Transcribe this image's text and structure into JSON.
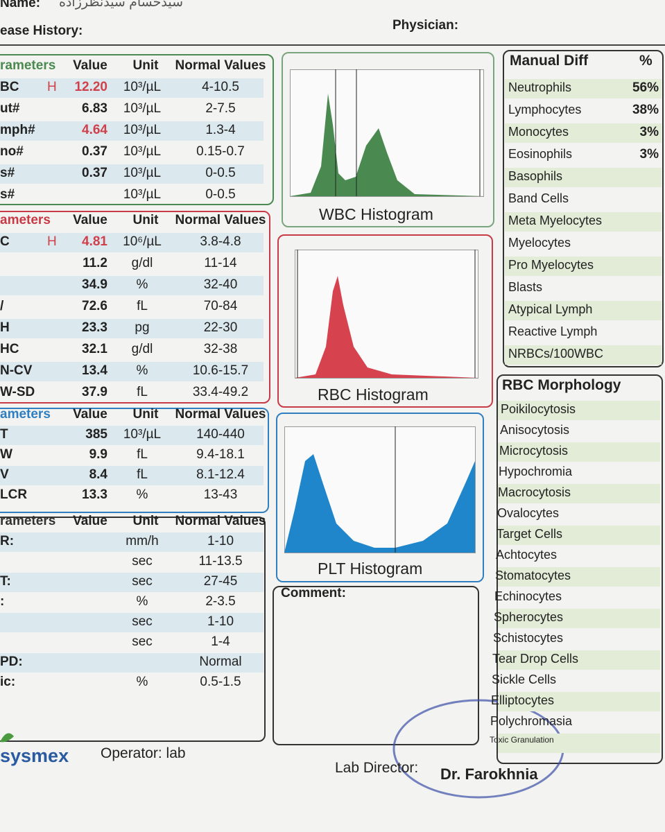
{
  "header": {
    "name_label": "Name:",
    "name_value": "سیدحسام سیدنظرزاده",
    "history_label": "ease History:",
    "physician_label": "Physician:"
  },
  "wbc": {
    "color": "#4a8a50",
    "header": [
      "rameters",
      "Value",
      "Unit",
      "Normal Values"
    ],
    "rows": [
      {
        "name": "BC",
        "flag": "H",
        "value": "12.20",
        "unit": "10³/µL",
        "normal": "4-10.5",
        "color": "#d0404a"
      },
      {
        "name": "ut#",
        "value": "6.83",
        "unit": "10³/µL",
        "normal": "2-7.5"
      },
      {
        "name": "mph#",
        "value": "4.64",
        "unit": "10³/µL",
        "normal": "1.3-4",
        "color": "#d0404a"
      },
      {
        "name": "no#",
        "value": "0.37",
        "unit": "10³/µL",
        "normal": "0.15-0.7"
      },
      {
        "name": "s#",
        "value": "0.37",
        "unit": "10³/µL",
        "normal": "0-0.5"
      },
      {
        "name": "s#",
        "unit": "10³/µL",
        "normal": "0-0.5"
      }
    ]
  },
  "rbc": {
    "color": "#c83a45",
    "header": [
      "ameters",
      "Value",
      "Unit",
      "Normal Values"
    ],
    "rows": [
      {
        "name": "C",
        "flag": "H",
        "value": "4.81",
        "unit": "10⁶/µL",
        "normal": "3.8-4.8",
        "color": "#d0404a"
      },
      {
        "value": "11.2",
        "unit": "g/dl",
        "normal": "11-14"
      },
      {
        "value": "34.9",
        "unit": "%",
        "normal": "32-40"
      },
      {
        "name": "/",
        "value": "72.6",
        "unit": "fL",
        "normal": "70-84"
      },
      {
        "name": "H",
        "value": "23.3",
        "unit": "pg",
        "normal": "22-30"
      },
      {
        "name": "HC",
        "value": "32.1",
        "unit": "g/dl",
        "normal": "32-38"
      },
      {
        "name": "N-CV",
        "value": "13.4",
        "unit": "%",
        "normal": "10.6-15.7"
      },
      {
        "name": "W-SD",
        "value": "37.9",
        "unit": "fL",
        "normal": "33.4-49.2"
      }
    ]
  },
  "plt": {
    "color": "#2f7fc0",
    "header": [
      "ameters",
      "Value",
      "Unit",
      "Normal Values"
    ],
    "rows": [
      {
        "name": "T",
        "value": "385",
        "unit": "10³/µL",
        "normal": "140-440"
      },
      {
        "name": "W",
        "value": "9.9",
        "unit": "fL",
        "normal": "9.4-18.1"
      },
      {
        "name": "V",
        "value": "8.4",
        "unit": "fL",
        "normal": "8.1-12.4"
      },
      {
        "name": "LCR",
        "value": "13.3",
        "unit": "%",
        "normal": "13-43"
      }
    ]
  },
  "other": {
    "color": "#333333",
    "header": [
      "rameters",
      "Value",
      "Unit",
      "Normal Values"
    ],
    "rows": [
      {
        "name": "R:",
        "unit": "mm/h",
        "normal": "1-10"
      },
      {
        "unit": "sec",
        "normal": "11-13.5"
      },
      {
        "name": "T:",
        "unit": "sec",
        "normal": "27-45"
      },
      {
        "name": ":",
        "unit": "%",
        "normal": "2-3.5"
      },
      {
        "unit": "sec",
        "normal": "1-10"
      },
      {
        "unit": "sec",
        "normal": "1-4"
      },
      {
        "name": "PD:",
        "normal": "Normal"
      },
      {
        "name": "ic:",
        "unit": "%",
        "normal": "0.5-1.5"
      }
    ]
  },
  "histograms": {
    "wbc": "WBC Histogram",
    "rbc": "RBC Histogram",
    "plt": "PLT Histogram"
  },
  "comment_label": "Comment:",
  "manual_diff": {
    "title": "Manual Diff",
    "unit": "%",
    "rows": [
      {
        "name": "Neutrophils",
        "value": "56%"
      },
      {
        "name": "Lymphocytes",
        "value": "38%"
      },
      {
        "name": "Monocytes",
        "value": "3%"
      },
      {
        "name": "Eosinophils",
        "value": "3%"
      },
      {
        "name": "Basophils"
      },
      {
        "name": "Band Cells"
      },
      {
        "name": "Meta Myelocytes"
      },
      {
        "name": "Myelocytes"
      },
      {
        "name": "Pro  Myelocytes"
      },
      {
        "name": "Blasts"
      },
      {
        "name": "Atypical Lymph"
      },
      {
        "name": "Reactive Lymph"
      },
      {
        "name": "NRBCs/100WBC"
      }
    ]
  },
  "rbc_morphology": {
    "title": "RBC Morphology",
    "items": [
      "Poikilocytosis",
      "Anisocytosis",
      "Microcytosis",
      "Hypochromia",
      "Macrocytosis",
      "Ovalocytes",
      "Target Cells",
      "Achtocytes",
      "Stomatocytes",
      "Echinocytes",
      "Spherocytes",
      "Schistocytes",
      "Tear Drop Cells",
      "Sickle Cells",
      "Elliptocytes",
      "Polychromasia",
      "Toxic Granulation"
    ]
  },
  "footer": {
    "brand": "sysmex",
    "operator": "Operator: lab",
    "director_label": "Lab Director:",
    "director_name": "Dr. Farokhnia"
  }
}
